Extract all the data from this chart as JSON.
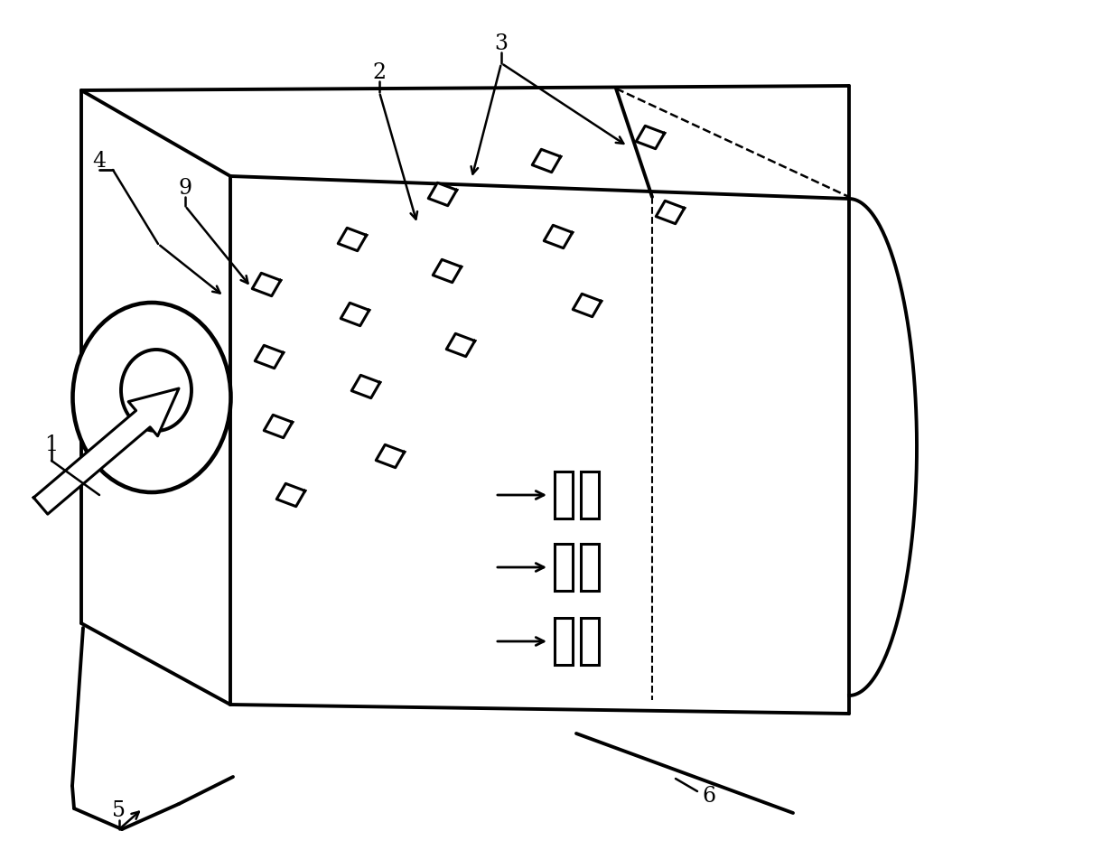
{
  "bg_color": "#ffffff",
  "lc": "#000000",
  "lw": 2.2,
  "lw_thick": 2.8,
  "label_fontsize": 17
}
